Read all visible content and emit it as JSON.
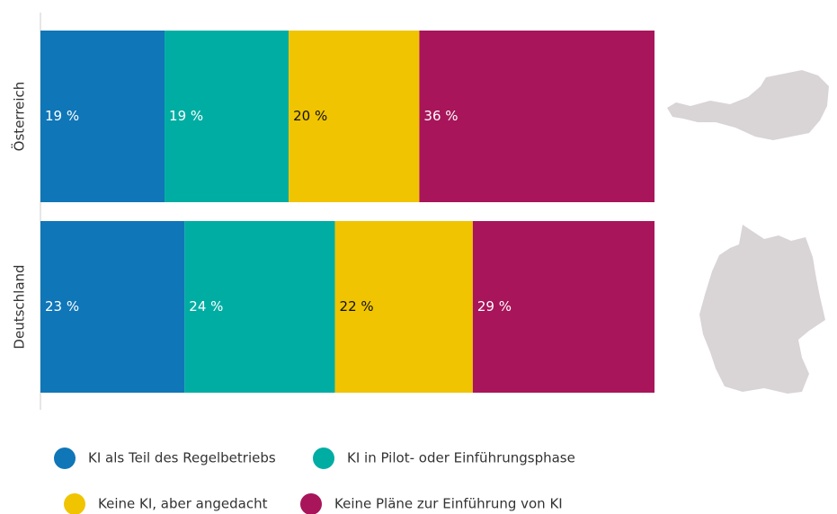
{
  "chart_data": {
    "type": "stacked-barh",
    "categories": [
      "Österreich",
      "Deutschland"
    ],
    "series": [
      {
        "name": "KI als Teil des Regelbetriebs",
        "color": "#0f76b8",
        "label_color": "#ffffff",
        "values": [
          19,
          23
        ],
        "value_labels": [
          "19 %",
          "23 %"
        ]
      },
      {
        "name": "KI in Pilot- oder Einführungsphase",
        "color": "#00ada3",
        "label_color": "#ffffff",
        "values": [
          19,
          24
        ],
        "value_labels": [
          "19 %",
          "24 %"
        ]
      },
      {
        "name": "Keine KI, aber angedacht",
        "color": "#f0c400",
        "label_color": "#111111",
        "values": [
          20,
          22
        ],
        "value_labels": [
          "20 %",
          "22 %"
        ]
      },
      {
        "name": "Keine Pläne zur Einführung von KI",
        "color": "#a8155a",
        "label_color": "#ffffff",
        "values": [
          36,
          29
        ],
        "value_labels": [
          "36 %",
          "29 %"
        ]
      }
    ]
  }
}
